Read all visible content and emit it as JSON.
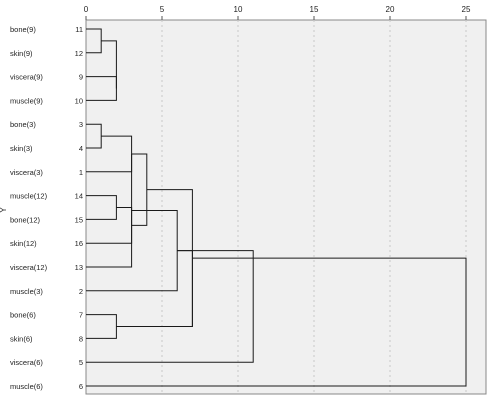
{
  "chart_data": {
    "type": "dendrogram",
    "ylabel": "Y",
    "x_ticks": [
      0,
      5,
      10,
      15,
      20,
      25
    ],
    "xlim": [
      0,
      25
    ],
    "grid": "vertical dashed",
    "leaves": [
      {
        "name": "bone(9)",
        "id": "11"
      },
      {
        "name": "skin(9)",
        "id": "12"
      },
      {
        "name": "viscera(9)",
        "id": "9"
      },
      {
        "name": "muscle(9)",
        "id": "10"
      },
      {
        "name": "bone(3)",
        "id": "3"
      },
      {
        "name": "skin(3)",
        "id": "4"
      },
      {
        "name": "viscera(3)",
        "id": "1"
      },
      {
        "name": "muscle(12)",
        "id": "14"
      },
      {
        "name": "bone(12)",
        "id": "15"
      },
      {
        "name": "skin(12)",
        "id": "16"
      },
      {
        "name": "viscera(12)",
        "id": "13"
      },
      {
        "name": "muscle(3)",
        "id": "2"
      },
      {
        "name": "bone(6)",
        "id": "7"
      },
      {
        "name": "skin(6)",
        "id": "8"
      },
      {
        "name": "viscera(6)",
        "id": "5"
      },
      {
        "name": "muscle(6)",
        "id": "6"
      }
    ],
    "merges": [
      {
        "a": 0,
        "b": 1,
        "height": 1
      },
      {
        "a": 4,
        "b": 5,
        "height": 1
      },
      {
        "a": 2,
        "b": 3,
        "height": 2
      },
      {
        "a": 7,
        "b": 8,
        "height": 2
      },
      {
        "a": 12,
        "b": 13,
        "height": 2
      },
      {
        "a": 16,
        "b": 18,
        "height": 2
      },
      {
        "a": 17,
        "b": 6,
        "height": 3
      },
      {
        "a": 19,
        "b": 9,
        "height": 3
      },
      {
        "a": 22,
        "b": 10,
        "height": 3
      },
      {
        "a": 22,
        "b": 23,
        "height": 4
      },
      {
        "a": 24,
        "b": 11,
        "height": 6
      },
      {
        "a": 25,
        "b": 20,
        "height": 7
      },
      {
        "a": 26,
        "b": 20,
        "height": 7
      },
      {
        "a": 26,
        "b": 14,
        "height": 11
      },
      {
        "a": 27,
        "b": 15,
        "height": 25
      }
    ]
  }
}
